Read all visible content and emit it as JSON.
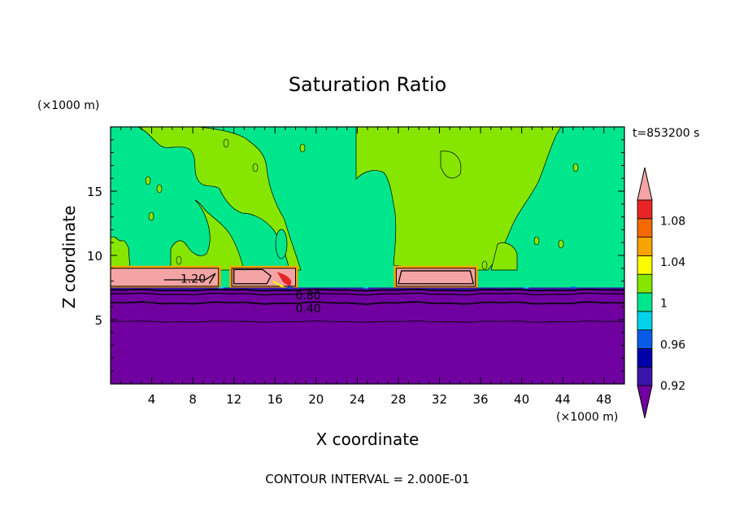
{
  "chart_data": {
    "type": "heatmap",
    "title": "Saturation Ratio",
    "xlabel": "X coordinate",
    "ylabel": "Z coordinate",
    "x_unit": "(×1000 m)",
    "y_unit": "(×1000 m)",
    "time_label": "t=853200 s",
    "footer": "CONTOUR INTERVAL = 2.000E-01",
    "xlim": [
      0,
      50
    ],
    "ylim": [
      0,
      20
    ],
    "x_ticks": [
      4,
      8,
      12,
      16,
      20,
      24,
      28,
      32,
      36,
      40,
      44,
      48
    ],
    "y_ticks": [
      5,
      10,
      15
    ],
    "contour_labels": [
      "1.20",
      "0.80",
      "0.40"
    ],
    "colorbar": {
      "tick_labels": [
        "0.92",
        "0.96",
        "1",
        "1.04",
        "1.08"
      ],
      "levels": [
        0.92,
        0.94,
        0.96,
        0.98,
        1.0,
        1.02,
        1.04,
        1.06,
        1.08,
        1.1
      ],
      "colors": [
        "#7000a0",
        "#3a14a8",
        "#0000aa",
        "#0a5ae8",
        "#00d2e8",
        "#00e68c",
        "#86e600",
        "#fcfc00",
        "#f8a400",
        "#f26a00",
        "#e82424",
        "#f4a4a4"
      ],
      "extend": "both"
    },
    "colors": {
      "low": "#7000a0",
      "upper_background": "#00e68c",
      "moist_plume": "#86e600",
      "cloud_top_layer": "#f4a4a4",
      "edge_orange": "#f8a400",
      "edge_red": "#e82424"
    },
    "regions": {
      "stable_layer_top_z": 7.5,
      "cloud_layer_z": [
        7.6,
        9.0
      ],
      "cloud_segments_x": [
        [
          0,
          10.5
        ],
        [
          11.8,
          18.0
        ],
        [
          27.8,
          35.5
        ]
      ],
      "plumes_x": [
        [
          0,
          2.2
        ],
        [
          5.5,
          18.0
        ],
        [
          27.0,
          43.0
        ]
      ]
    }
  }
}
